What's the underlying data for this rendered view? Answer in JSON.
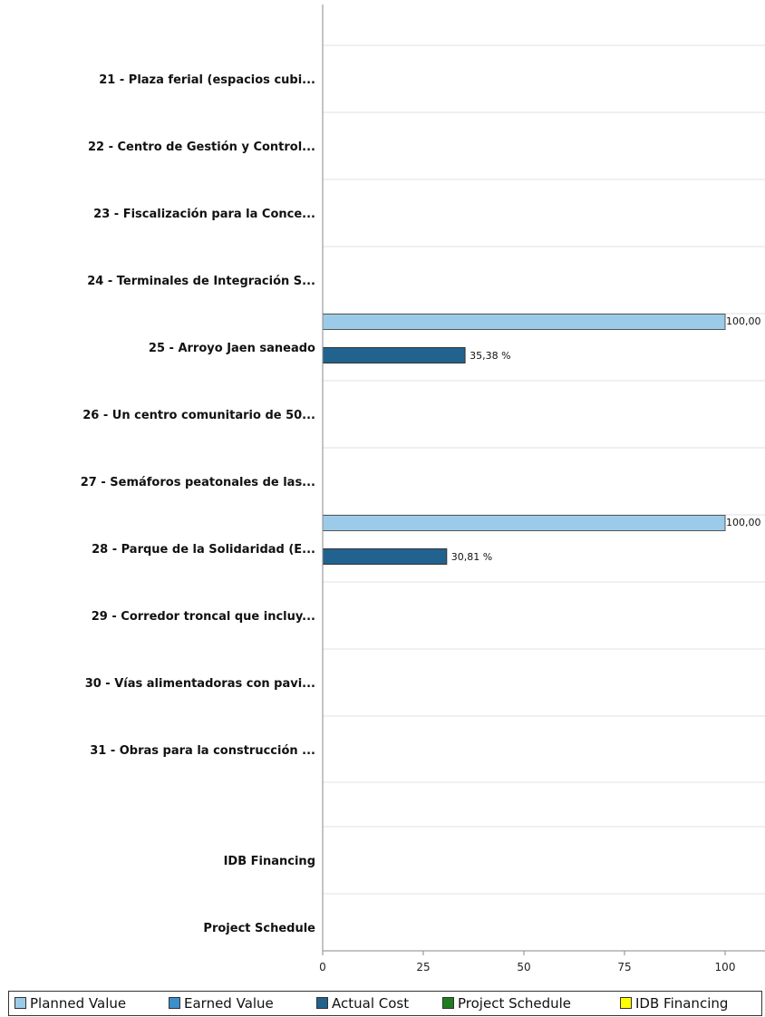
{
  "chart_data": {
    "type": "bar",
    "orientation": "horizontal",
    "categories": [
      "21 - Plaza ferial (espacios cubi...",
      "22 - Centro de Gestión y Control...",
      "23 - Fiscalización para la Conce...",
      "24 - Terminales de Integración S...",
      "25 - Arroyo Jaen saneado",
      "26 - Un centro comunitario de 50...",
      "27 - Semáforos peatonales de las...",
      "28 - Parque de la Solidaridad (E...",
      "29 - Corredor troncal que incluy...",
      "30 - Vías alimentadoras con pavi...",
      "31 - Obras para la construcción ...",
      "IDB Financing",
      "Project Schedule"
    ],
    "series": [
      {
        "name": "Planned Value",
        "color": "#9ccbea",
        "values": [
          null,
          null,
          null,
          null,
          100,
          null,
          null,
          100,
          null,
          null,
          null,
          null,
          null
        ],
        "labels": [
          null,
          null,
          null,
          null,
          "100,00",
          null,
          null,
          "100,00",
          null,
          null,
          null,
          null,
          null
        ]
      },
      {
        "name": "Earned Value",
        "color": "#3d8fcb",
        "values": [
          null,
          null,
          null,
          null,
          null,
          null,
          null,
          null,
          null,
          null,
          null,
          null,
          null
        ],
        "labels": [
          null,
          null,
          null,
          null,
          null,
          null,
          null,
          null,
          null,
          null,
          null,
          null,
          null
        ]
      },
      {
        "name": "Actual Cost",
        "color": "#21628f",
        "values": [
          null,
          null,
          null,
          null,
          35.38,
          null,
          null,
          30.81,
          null,
          null,
          null,
          null,
          null
        ],
        "labels": [
          null,
          null,
          null,
          null,
          "35,38 %",
          null,
          null,
          "30,81 %",
          null,
          null,
          null,
          null,
          null
        ]
      },
      {
        "name": "Project Schedule",
        "color": "#1f7d1f",
        "values": [
          null,
          null,
          null,
          null,
          null,
          null,
          null,
          null,
          null,
          null,
          null,
          null,
          null
        ],
        "labels": [
          null,
          null,
          null,
          null,
          null,
          null,
          null,
          null,
          null,
          null,
          null,
          null,
          null
        ]
      },
      {
        "name": "IDB Financing",
        "color": "#ffff00",
        "values": [
          null,
          null,
          null,
          null,
          null,
          null,
          null,
          null,
          null,
          null,
          null,
          null,
          null
        ],
        "labels": [
          null,
          null,
          null,
          null,
          null,
          null,
          null,
          null,
          null,
          null,
          null,
          null,
          null
        ]
      }
    ],
    "xlim": [
      0,
      110
    ],
    "xticks": [
      0,
      25,
      50,
      75,
      100
    ],
    "grid": true,
    "legend_position": "bottom"
  }
}
